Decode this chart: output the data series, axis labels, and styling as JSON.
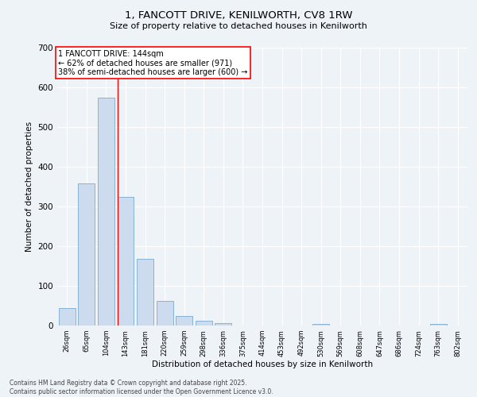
{
  "title_line1": "1, FANCOTT DRIVE, KENILWORTH, CV8 1RW",
  "title_line2": "Size of property relative to detached houses in Kenilworth",
  "xlabel": "Distribution of detached houses by size in Kenilworth",
  "ylabel": "Number of detached properties",
  "categories": [
    "26sqm",
    "65sqm",
    "104sqm",
    "143sqm",
    "181sqm",
    "220sqm",
    "259sqm",
    "298sqm",
    "336sqm",
    "375sqm",
    "414sqm",
    "453sqm",
    "492sqm",
    "530sqm",
    "569sqm",
    "608sqm",
    "647sqm",
    "686sqm",
    "724sqm",
    "763sqm",
    "802sqm"
  ],
  "values": [
    45,
    358,
    575,
    325,
    168,
    62,
    24,
    12,
    6,
    0,
    0,
    0,
    0,
    5,
    0,
    0,
    0,
    0,
    0,
    5,
    0
  ],
  "bar_color": "#ccdcee",
  "bar_edge_color": "#7aaad0",
  "red_line_index": 3,
  "annotation_title": "1 FANCOTT DRIVE: 144sqm",
  "annotation_line2": "← 62% of detached houses are smaller (971)",
  "annotation_line3": "38% of semi-detached houses are larger (600) →",
  "ylim": [
    0,
    700
  ],
  "yticks": [
    0,
    100,
    200,
    300,
    400,
    500,
    600,
    700
  ],
  "background_color": "#eef3f8",
  "grid_color": "#d0dce8",
  "footer_line1": "Contains HM Land Registry data © Crown copyright and database right 2025.",
  "footer_line2": "Contains public sector information licensed under the Open Government Licence v3.0."
}
